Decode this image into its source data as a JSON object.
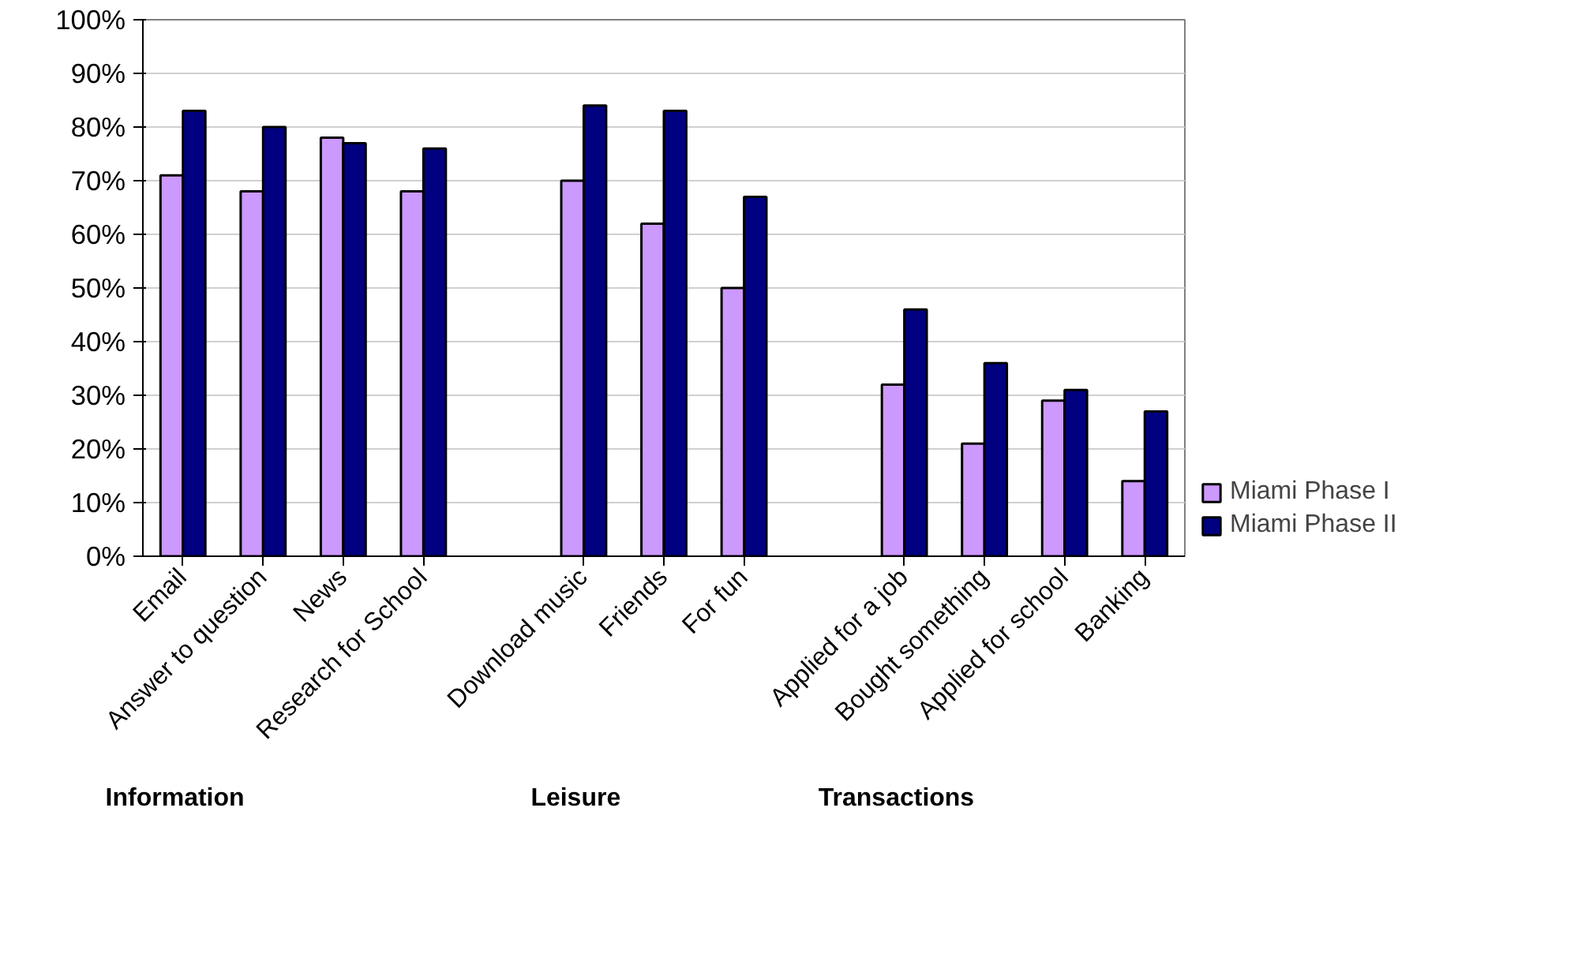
{
  "chart_data": {
    "type": "bar",
    "categories": [
      "Email",
      "Answer to question",
      "News",
      "Research for School",
      null,
      "Download music",
      "Friends",
      "For fun",
      null,
      "Applied for a job",
      "Bought something",
      "Applied for school",
      "Banking"
    ],
    "series": [
      {
        "name": "Miami Phase I",
        "color": "#cc99ff",
        "values": [
          71,
          68,
          78,
          68,
          null,
          70,
          62,
          50,
          null,
          32,
          21,
          29,
          14
        ]
      },
      {
        "name": "Miami Phase II",
        "color": "#000080",
        "values": [
          83,
          80,
          77,
          76,
          null,
          84,
          83,
          67,
          null,
          46,
          36,
          31,
          27
        ]
      }
    ],
    "ylim": [
      0,
      100
    ],
    "yticks": [
      {
        "value": 0,
        "label": "0%"
      },
      {
        "value": 10,
        "label": "10%"
      },
      {
        "value": 20,
        "label": "20%"
      },
      {
        "value": 30,
        "label": "30%"
      },
      {
        "value": 40,
        "label": "40%"
      },
      {
        "value": 50,
        "label": "50%"
      },
      {
        "value": 60,
        "label": "60%"
      },
      {
        "value": 70,
        "label": "70%"
      },
      {
        "value": 80,
        "label": "80%"
      },
      {
        "value": 90,
        "label": "90%"
      },
      {
        "value": 100,
        "label": "100%"
      }
    ],
    "grid": "y",
    "legend": "right",
    "annotations": [
      "Information",
      "Leisure",
      "Transactions"
    ]
  }
}
